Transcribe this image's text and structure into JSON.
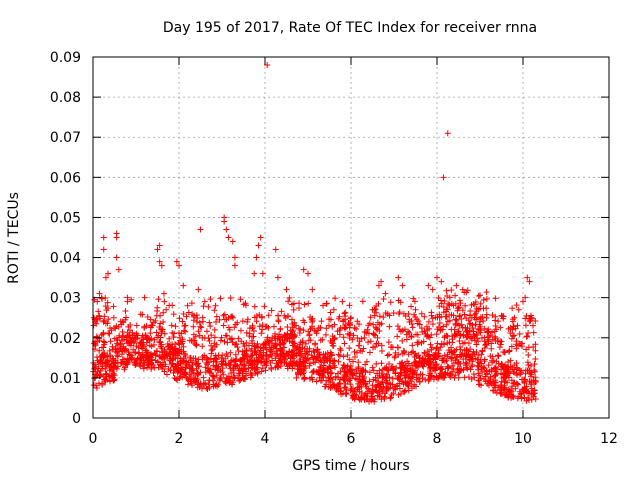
{
  "chart_data": {
    "type": "scatter",
    "title": "Day 195 of 2017, Rate Of TEC Index for receiver rnna",
    "xlabel": "GPS time / hours",
    "ylabel": "ROTI / TECUs",
    "xlim": [
      0,
      12
    ],
    "ylim": [
      0,
      0.09
    ],
    "xticks": [
      "0",
      "2",
      "4",
      "6",
      "8",
      "10",
      "12"
    ],
    "yticks": [
      "0",
      "0.01",
      "0.02",
      "0.03",
      "0.04",
      "0.05",
      "0.06",
      "0.07",
      "0.08",
      "0.09"
    ],
    "grid": true,
    "marker": "+",
    "color": "#ff0000",
    "series": [
      {
        "name": "ROTI",
        "points": [
          [
            0.02,
            0.025
          ],
          [
            0.05,
            0.024
          ],
          [
            0.1,
            0.029
          ],
          [
            0.15,
            0.031
          ],
          [
            0.2,
            0.03
          ],
          [
            0.25,
            0.045
          ],
          [
            0.25,
            0.042
          ],
          [
            0.3,
            0.035
          ],
          [
            0.35,
            0.036
          ],
          [
            0.55,
            0.046
          ],
          [
            0.55,
            0.045
          ],
          [
            0.55,
            0.04
          ],
          [
            0.6,
            0.037
          ],
          [
            0.8,
            0.03
          ],
          [
            0.8,
            0.029
          ],
          [
            1.2,
            0.03
          ],
          [
            1.5,
            0.042
          ],
          [
            1.55,
            0.043
          ],
          [
            1.55,
            0.039
          ],
          [
            1.6,
            0.038
          ],
          [
            1.65,
            0.031
          ],
          [
            1.7,
            0.027
          ],
          [
            1.95,
            0.039
          ],
          [
            2.0,
            0.038
          ],
          [
            2.1,
            0.033
          ],
          [
            2.2,
            0.028
          ],
          [
            2.5,
            0.047
          ],
          [
            2.45,
            0.032
          ],
          [
            2.6,
            0.029
          ],
          [
            2.85,
            0.028
          ],
          [
            3.05,
            0.05
          ],
          [
            3.05,
            0.049
          ],
          [
            3.1,
            0.047
          ],
          [
            3.15,
            0.045
          ],
          [
            3.25,
            0.044
          ],
          [
            3.3,
            0.04
          ],
          [
            3.3,
            0.038
          ],
          [
            3.75,
            0.036
          ],
          [
            3.8,
            0.04
          ],
          [
            3.85,
            0.043
          ],
          [
            3.9,
            0.045
          ],
          [
            3.95,
            0.036
          ],
          [
            4.05,
            0.088
          ],
          [
            4.25,
            0.042
          ],
          [
            4.3,
            0.035
          ],
          [
            4.5,
            0.032
          ],
          [
            4.9,
            0.037
          ],
          [
            5.0,
            0.036
          ],
          [
            5.1,
            0.032
          ],
          [
            5.6,
            0.027
          ],
          [
            5.8,
            0.029
          ],
          [
            6.0,
            0.025
          ],
          [
            6.5,
            0.027
          ],
          [
            6.65,
            0.033
          ],
          [
            6.7,
            0.034
          ],
          [
            6.8,
            0.031
          ],
          [
            7.1,
            0.035
          ],
          [
            7.2,
            0.033
          ],
          [
            7.5,
            0.027
          ],
          [
            7.8,
            0.033
          ],
          [
            7.9,
            0.032
          ],
          [
            8.0,
            0.035
          ],
          [
            8.1,
            0.034
          ],
          [
            8.15,
            0.06
          ],
          [
            8.25,
            0.071
          ],
          [
            8.3,
            0.03
          ],
          [
            8.45,
            0.033
          ],
          [
            8.6,
            0.032
          ],
          [
            8.9,
            0.026
          ],
          [
            9.0,
            0.024
          ],
          [
            9.5,
            0.019
          ],
          [
            9.8,
            0.025
          ],
          [
            9.9,
            0.027
          ],
          [
            10.0,
            0.029
          ],
          [
            10.05,
            0.03
          ],
          [
            10.1,
            0.035
          ],
          [
            10.15,
            0.034
          ],
          [
            10.2,
            0.025
          ]
        ]
      }
    ],
    "bulk_generation": {
      "note": "Dense cloud of remaining ROTI samples spanning 0 to 10.3 hours, mostly between 0.005 and 0.03 TECUs",
      "x_min": 0,
      "x_max": 10.3,
      "count": 2600,
      "seed": 195
    }
  }
}
